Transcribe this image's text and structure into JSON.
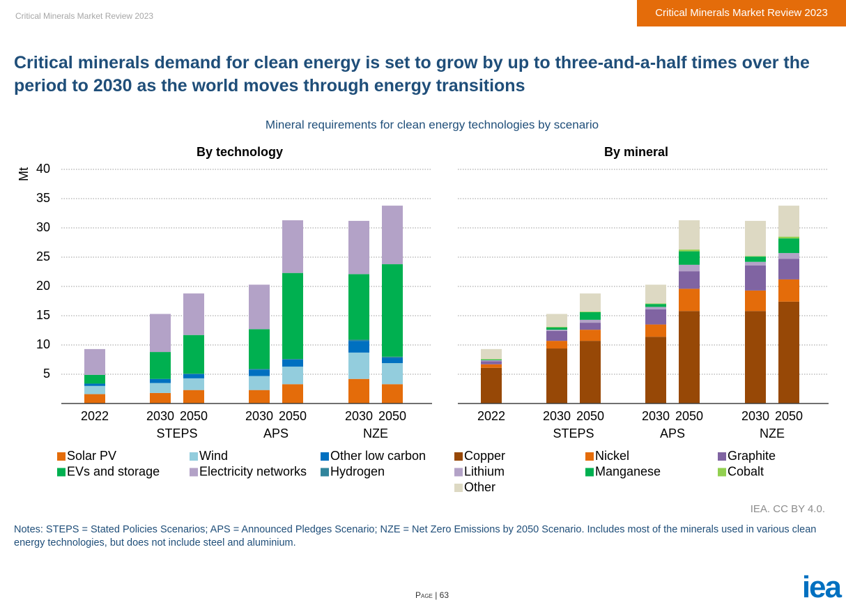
{
  "header": {
    "running_title": "Critical Minerals Market Review 2023",
    "badge": "Critical Minerals Market Review 2023"
  },
  "title": "Critical minerals demand for clean energy is set to grow by up to three-and-a-half times over the period to 2030 as the world moves through energy transitions",
  "subtitle": "Mineral requirements for clean energy technologies by scenario",
  "chart_data": [
    {
      "type": "bar",
      "stacked": true,
      "title": "By technology",
      "y_label": "Mt",
      "ylim": [
        0,
        40
      ],
      "yticks": [
        5,
        10,
        15,
        20,
        25,
        30,
        35,
        40
      ],
      "grid": true,
      "tick_labels": true,
      "groups": [
        {
          "name": null,
          "categories": [
            "2022"
          ]
        },
        {
          "name": "STEPS",
          "categories": [
            "2030",
            "2050"
          ]
        },
        {
          "name": "APS",
          "categories": [
            "2030",
            "2050"
          ]
        },
        {
          "name": "NZE",
          "categories": [
            "2030",
            "2050"
          ]
        }
      ],
      "series": [
        {
          "name": "Solar PV",
          "color": "#e46c0a",
          "values": [
            1.6,
            1.8,
            2.3,
            2.3,
            3.3,
            4.2,
            3.3
          ]
        },
        {
          "name": "Wind",
          "color": "#93cddd",
          "values": [
            1.4,
            1.7,
            2.0,
            2.4,
            3.0,
            4.5,
            3.6
          ]
        },
        {
          "name": "Other low carbon",
          "color": "#0070c0",
          "values": [
            0.4,
            0.7,
            0.7,
            1.1,
            1.2,
            2.0,
            0.9
          ]
        },
        {
          "name": "Hydrogen",
          "color": "#31859c",
          "values": [
            0,
            0,
            0.1,
            0.1,
            0.1,
            0.2,
            0.2
          ]
        },
        {
          "name": "EVs and storage",
          "color": "#00b050",
          "values": [
            1.5,
            4.6,
            6.6,
            6.8,
            14.7,
            11.2,
            15.8
          ]
        },
        {
          "name": "Electricity networks",
          "color": "#b3a2c7",
          "values": [
            4.4,
            6.5,
            7.1,
            7.6,
            9.0,
            9.1,
            10.0
          ]
        }
      ]
    },
    {
      "type": "bar",
      "stacked": true,
      "title": "By mineral",
      "ylim": [
        0,
        40
      ],
      "yticks": [
        5,
        10,
        15,
        20,
        25,
        30,
        35,
        40
      ],
      "grid": true,
      "tick_labels": false,
      "groups": [
        {
          "name": null,
          "categories": [
            "2022"
          ]
        },
        {
          "name": "STEPS",
          "categories": [
            "2030",
            "2050"
          ]
        },
        {
          "name": "APS",
          "categories": [
            "2030",
            "2050"
          ]
        },
        {
          "name": "NZE",
          "categories": [
            "2030",
            "2050"
          ]
        }
      ],
      "series": [
        {
          "name": "Copper",
          "color": "#974806",
          "values": [
            6.1,
            9.4,
            10.7,
            11.4,
            15.8,
            15.8,
            17.4
          ]
        },
        {
          "name": "Nickel",
          "color": "#e46c0a",
          "values": [
            0.6,
            1.3,
            1.9,
            2.1,
            3.8,
            3.5,
            3.8
          ]
        },
        {
          "name": "Graphite",
          "color": "#8064a2",
          "values": [
            0.5,
            1.7,
            1.2,
            2.6,
            3.0,
            4.3,
            3.5
          ]
        },
        {
          "name": "Lithium",
          "color": "#b3a2c7",
          "values": [
            0.2,
            0.2,
            0.5,
            0.4,
            1.1,
            0.6,
            1.0
          ]
        },
        {
          "name": "Manganese",
          "color": "#00b050",
          "values": [
            0.1,
            0.4,
            1.3,
            0.5,
            2.3,
            0.9,
            2.5
          ]
        },
        {
          "name": "Cobalt",
          "color": "#92d050",
          "values": [
            0.1,
            0.1,
            0.1,
            0.1,
            0.3,
            0.1,
            0.3
          ]
        },
        {
          "name": "Other",
          "color": "#ddd9c3",
          "values": [
            1.7,
            2.2,
            3.1,
            3.2,
            5.0,
            6.0,
            5.3
          ]
        }
      ]
    }
  ],
  "source": "IEA. CC BY 4.0.",
  "notes": "Notes: STEPS = Stated Policies Scenarios; APS = Announced Pledges Scenario; NZE = Net Zero Emissions by 2050 Scenario. Includes most of the minerals used in various clean energy technologies, but does not include steel and aluminium.",
  "page": "Page | 63",
  "logo": "iea"
}
